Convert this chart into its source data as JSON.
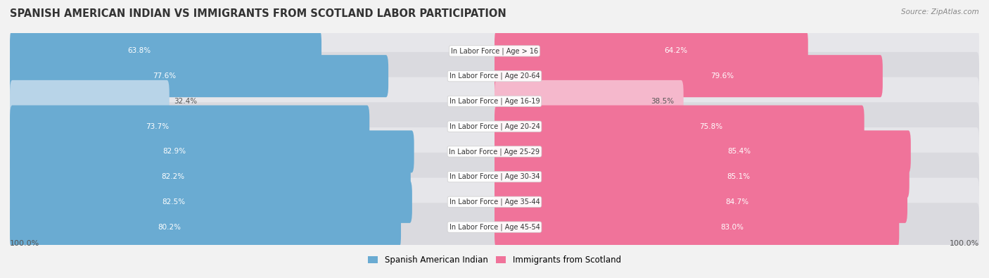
{
  "title": "Spanish American Indian vs Immigrants from Scotland Labor Participation",
  "source": "Source: ZipAtlas.com",
  "categories": [
    "In Labor Force | Age > 16",
    "In Labor Force | Age 20-64",
    "In Labor Force | Age 16-19",
    "In Labor Force | Age 20-24",
    "In Labor Force | Age 25-29",
    "In Labor Force | Age 30-34",
    "In Labor Force | Age 35-44",
    "In Labor Force | Age 45-54"
  ],
  "spanish_values": [
    63.8,
    77.6,
    32.4,
    73.7,
    82.9,
    82.2,
    82.5,
    80.2
  ],
  "scotland_values": [
    64.2,
    79.6,
    38.5,
    75.8,
    85.4,
    85.1,
    84.7,
    83.0
  ],
  "max_value": 100.0,
  "blue_color": "#6aabd2",
  "blue_light_color": "#b8d4e8",
  "pink_color": "#f0739a",
  "pink_light_color": "#f5b8cc",
  "bg_color": "#f2f2f2",
  "row_bg_even": "#e8e8ec",
  "row_bg_odd": "#dcdce4",
  "legend_blue": "Spanish American Indian",
  "legend_pink": "Immigrants from Scotland",
  "title_color": "#333333",
  "source_color": "#888888",
  "label_font_size": 7.5,
  "title_font_size": 10.5,
  "source_font_size": 7.5
}
